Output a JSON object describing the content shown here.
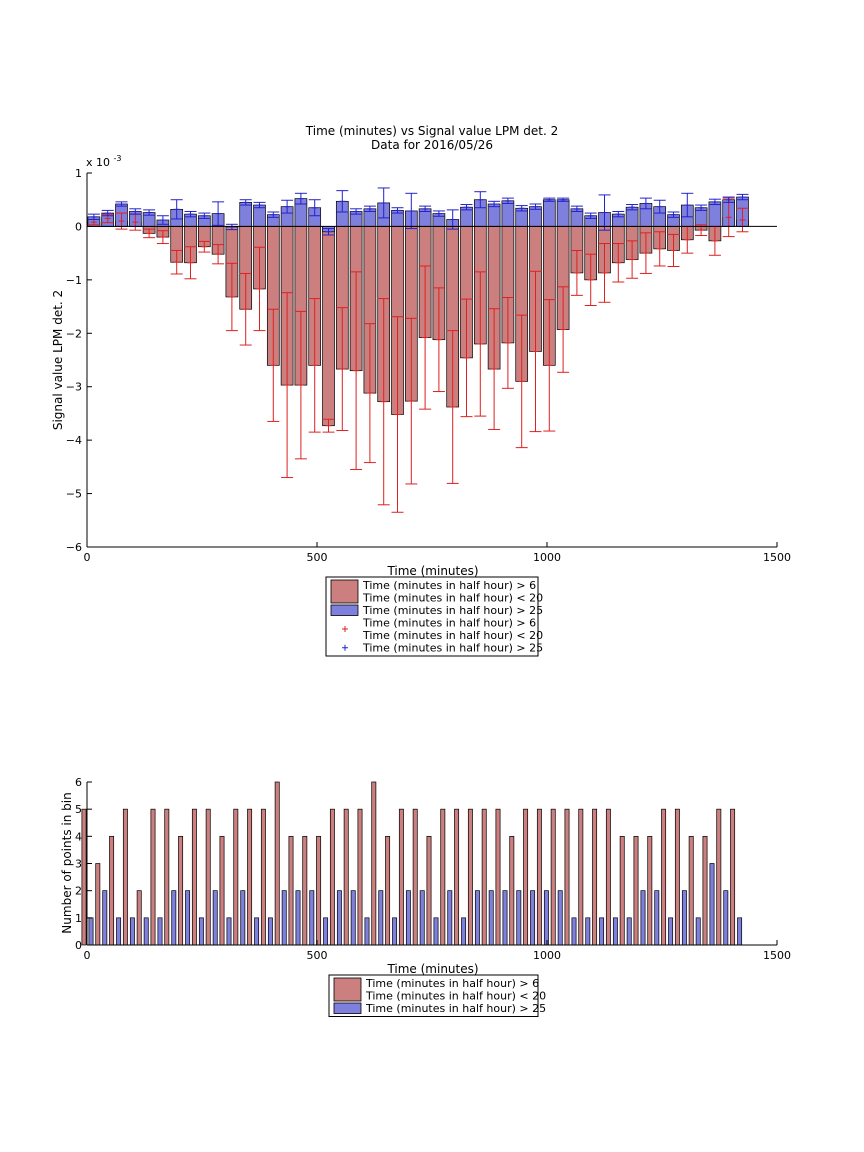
{
  "colors": {
    "red_fill": "#cc7f7f",
    "blue_fill": "#7f7fdd",
    "red_err": "#dd2222",
    "blue_err": "#2222cc",
    "axis": "#000000"
  },
  "chart_data": [
    {
      "type": "bar",
      "title": "Time (minutes) vs Signal value LPM det. 2",
      "subtitle": "Data for 2016/05/26",
      "xlabel": "Time (minutes)",
      "ylabel": "Signal value LPM det. 2",
      "y_exponent_label": "x 10",
      "y_exponent_power": "-3",
      "xlim": [
        0,
        1500
      ],
      "ylim": [
        -6,
        1
      ],
      "xticks": [
        "0",
        "500",
        "1000",
        "1500"
      ],
      "yticks": [
        "1",
        "0",
        "−1",
        "−2",
        "−3",
        "−4",
        "−5",
        "−6"
      ],
      "grid": false,
      "legend_position": "below",
      "x": [
        15,
        45,
        75,
        105,
        135,
        165,
        195,
        225,
        255,
        285,
        315,
        345,
        375,
        405,
        435,
        465,
        495,
        525,
        555,
        585,
        615,
        645,
        675,
        705,
        735,
        765,
        795,
        825,
        855,
        885,
        915,
        945,
        975,
        1005,
        1035,
        1065,
        1095,
        1125,
        1155,
        1185,
        1215,
        1245,
        1275,
        1305,
        1335,
        1365,
        1395,
        1425
      ],
      "series": [
        {
          "name": "Time (minutes in half hour) > 6\nTime (minutes in half hour) < 20",
          "values": [
            0.08,
            0.15,
            0.1,
            0.08,
            -0.13,
            -0.2,
            -0.67,
            -0.68,
            -0.38,
            -0.52,
            -1.32,
            -1.55,
            -1.17,
            -2.6,
            -2.97,
            -2.97,
            -2.6,
            -3.73,
            -2.67,
            -2.7,
            -3.12,
            -3.28,
            -3.52,
            -3.27,
            -2.08,
            -2.12,
            -3.38,
            -2.46,
            -2.2,
            -2.67,
            -2.18,
            -2.9,
            -2.34,
            -2.6,
            -1.93,
            -0.87,
            -1.0,
            -0.87,
            -0.68,
            -0.62,
            -0.5,
            -0.42,
            -0.45,
            -0.25,
            -0.07,
            -0.27,
            0.17,
            0.12
          ],
          "errors": [
            0.05,
            0.08,
            0.15,
            0.15,
            0.08,
            0.12,
            0.22,
            0.3,
            0.1,
            0.18,
            0.63,
            0.67,
            0.78,
            1.05,
            1.73,
            1.38,
            1.25,
            0.12,
            1.15,
            1.85,
            1.3,
            1.93,
            1.83,
            1.55,
            1.34,
            0.97,
            1.43,
            1.1,
            1.35,
            1.13,
            0.85,
            1.24,
            1.5,
            1.23,
            0.8,
            0.42,
            0.48,
            0.55,
            0.36,
            0.35,
            0.38,
            0.32,
            0.3,
            0.25,
            0.1,
            0.27,
            0.36,
            0.22
          ]
        },
        {
          "name": "Time (minutes in half hour) > 25",
          "values": [
            0.18,
            0.25,
            0.42,
            0.28,
            0.26,
            0.12,
            0.32,
            0.23,
            0.2,
            0.24,
            -0.01,
            0.45,
            0.4,
            0.22,
            0.37,
            0.52,
            0.35,
            -0.1,
            0.47,
            0.28,
            0.33,
            0.44,
            0.3,
            0.29,
            0.33,
            0.24,
            0.13,
            0.36,
            0.5,
            0.42,
            0.48,
            0.34,
            0.37,
            0.5,
            0.5,
            0.33,
            0.2,
            0.26,
            0.23,
            0.36,
            0.43,
            0.37,
            0.22,
            0.4,
            0.35,
            0.46,
            0.5,
            0.55
          ],
          "errors": [
            0.05,
            0.05,
            0.04,
            0.05,
            0.05,
            0.08,
            0.18,
            0.05,
            0.05,
            0.22,
            0.05,
            0.05,
            0.05,
            0.05,
            0.12,
            0.1,
            0.15,
            0.06,
            0.2,
            0.05,
            0.05,
            0.28,
            0.05,
            0.33,
            0.05,
            0.05,
            0.18,
            0.05,
            0.15,
            0.05,
            0.05,
            0.05,
            0.05,
            0.03,
            0.03,
            0.05,
            0.05,
            0.33,
            0.05,
            0.05,
            0.1,
            0.12,
            0.05,
            0.22,
            0.05,
            0.05,
            0.05,
            0.05
          ]
        }
      ],
      "legend": [
        {
          "kind": "patch",
          "color": "#cc7f7f",
          "lines": [
            "Time (minutes in half hour) > 6",
            "Time (minutes in half hour) < 20"
          ]
        },
        {
          "kind": "patch",
          "color": "#7f7fdd",
          "lines": [
            "Time (minutes in half hour) > 25"
          ]
        },
        {
          "kind": "marker",
          "color": "#dd2222",
          "lines": [
            "Time (minutes in half hour) > 6",
            "Time (minutes in half hour) < 20"
          ]
        },
        {
          "kind": "marker",
          "color": "#2222cc",
          "lines": [
            "Time (minutes in half hour) > 25"
          ]
        }
      ]
    },
    {
      "type": "bar",
      "title": "",
      "xlabel": "Time (minutes)",
      "ylabel": "Number of points in bin",
      "xlim": [
        0,
        1500
      ],
      "ylim": [
        0,
        6
      ],
      "xticks": [
        "0",
        "500",
        "1000",
        "1500"
      ],
      "yticks": [
        "0",
        "1",
        "2",
        "3",
        "4",
        "5",
        "6"
      ],
      "grid": false,
      "legend_position": "below",
      "x": [
        15,
        45,
        75,
        105,
        135,
        165,
        195,
        225,
        255,
        285,
        315,
        345,
        375,
        405,
        435,
        465,
        495,
        525,
        555,
        585,
        615,
        645,
        675,
        705,
        735,
        765,
        795,
        825,
        855,
        885,
        915,
        945,
        975,
        1005,
        1035,
        1065,
        1095,
        1125,
        1155,
        1185,
        1215,
        1245,
        1275,
        1305,
        1335,
        1365,
        1395,
        1425
      ],
      "series": [
        {
          "name": "Time (minutes in half hour) > 6\nTime (minutes in half hour) < 20",
          "values": [
            5,
            3,
            4,
            5,
            2,
            5,
            5,
            4,
            5,
            5,
            4,
            5,
            5,
            5,
            6,
            4,
            4,
            4,
            5,
            5,
            5,
            6,
            4,
            5,
            5,
            4,
            5,
            5,
            5,
            5,
            5,
            4,
            5,
            5,
            5,
            5,
            5,
            5,
            5,
            4,
            4,
            4,
            5,
            5,
            4,
            4,
            5,
            5
          ]
        },
        {
          "name": "Time (minutes in half hour) > 25",
          "values": [
            1,
            2,
            1,
            1,
            1,
            1,
            2,
            2,
            1,
            2,
            1,
            2,
            1,
            1,
            2,
            2,
            2,
            1,
            2,
            2,
            1,
            2,
            1,
            2,
            2,
            1,
            2,
            1,
            2,
            2,
            2,
            2,
            2,
            2,
            2,
            1,
            1,
            1,
            1,
            1,
            2,
            2,
            1,
            2,
            1,
            3,
            2,
            1
          ]
        }
      ],
      "legend": [
        {
          "kind": "patch",
          "color": "#cc7f7f",
          "lines": [
            "Time (minutes in half hour) > 6",
            "Time (minutes in half hour) < 20"
          ]
        },
        {
          "kind": "patch",
          "color": "#7f7fdd",
          "lines": [
            "Time (minutes in half hour) > 25"
          ]
        }
      ]
    }
  ]
}
